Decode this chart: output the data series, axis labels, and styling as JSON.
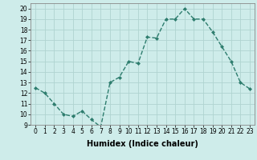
{
  "xlabel": "Humidex (Indice chaleur)",
  "x": [
    0,
    1,
    2,
    3,
    4,
    5,
    6,
    7,
    8,
    9,
    10,
    11,
    12,
    13,
    14,
    15,
    16,
    17,
    18,
    19,
    20,
    21,
    22,
    23
  ],
  "y": [
    12.5,
    12.0,
    11.0,
    10.0,
    9.8,
    10.3,
    9.5,
    8.8,
    13.0,
    13.5,
    15.0,
    14.8,
    17.3,
    17.2,
    19.0,
    19.0,
    20.0,
    19.0,
    19.0,
    17.8,
    16.4,
    15.0,
    13.0,
    12.4
  ],
  "line_color": "#2e7d6e",
  "marker": "D",
  "marker_size": 2.0,
  "line_width": 1.0,
  "line_style": "--",
  "bg_color": "#ceecea",
  "grid_color": "#b0d4d0",
  "ylim": [
    9,
    20.5
  ],
  "xlim": [
    -0.5,
    23.5
  ],
  "yticks": [
    9,
    10,
    11,
    12,
    13,
    14,
    15,
    16,
    17,
    18,
    19,
    20
  ],
  "xticks": [
    0,
    1,
    2,
    3,
    4,
    5,
    6,
    7,
    8,
    9,
    10,
    11,
    12,
    13,
    14,
    15,
    16,
    17,
    18,
    19,
    20,
    21,
    22,
    23
  ],
  "tick_fontsize": 5.5,
  "xlabel_fontsize": 7,
  "xlabel_fontweight": "bold"
}
